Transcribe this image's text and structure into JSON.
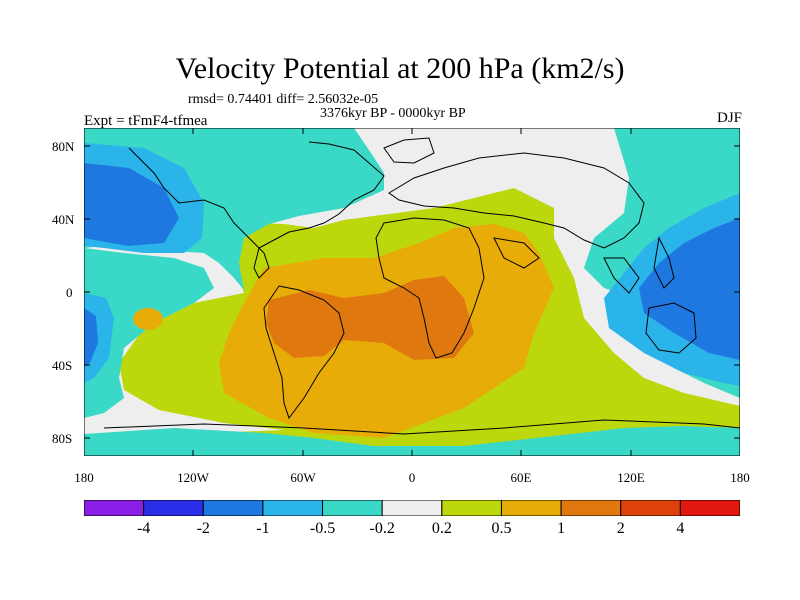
{
  "title": "Velocity Potential at 200 hPa (km2/s)",
  "stats": "rmsd= 0.74401 diff= 2.56032e-05",
  "period": "3376kyr BP - 0000kyr BP",
  "experiment": "Expt = tFmF4-tfmea",
  "season": "DJF",
  "map": {
    "lat_labels": [
      "80N",
      "40N",
      "0",
      "40S",
      "80S"
    ],
    "lon_labels": [
      "180",
      "120W",
      "60W",
      "0",
      "60E",
      "120E",
      "180"
    ]
  },
  "colorbar": {
    "colors": [
      "#8a1ee6",
      "#2a2ee8",
      "#1e78e0",
      "#2ab4ea",
      "#3ad8c6",
      "#eeeeee",
      "#bcd80c",
      "#e8ac08",
      "#e07810",
      "#e0400a",
      "#e01810"
    ],
    "labels": [
      "-4",
      "-2",
      "-1",
      "-0.5",
      "-0.2",
      "0.2",
      "0.5",
      "1",
      "2",
      "4"
    ]
  }
}
